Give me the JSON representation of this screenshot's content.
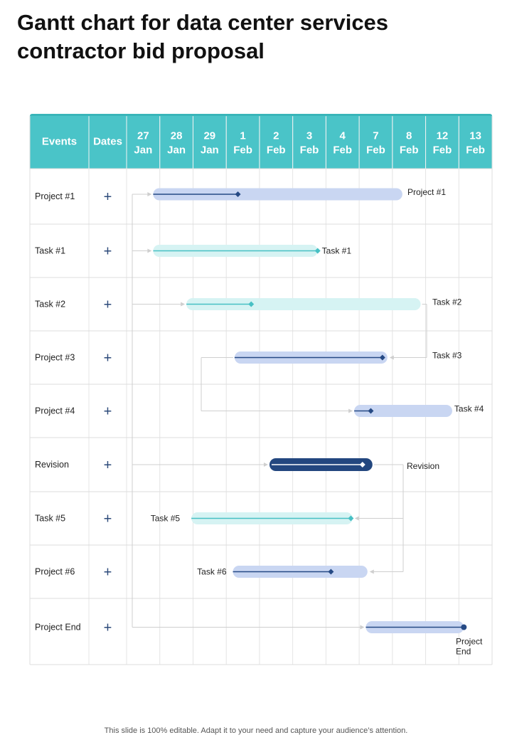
{
  "title_line1": "Gantt chart for data center services",
  "title_line2": "contractor bid proposal",
  "footer_note": "This slide is 100% editable. Adapt it to your need and capture your audience’s attention.",
  "colors": {
    "header_bg": "#4ac4c8",
    "header_top": "#39b5b9",
    "grid": "#dddddd",
    "plus": "#2c4a7a",
    "connector": "#cfcfcf",
    "light_blue": "#c9d6f2",
    "light_teal": "#d6f3f3",
    "dark_navy": "#23477f",
    "teal_line": "#47c0c4",
    "navy_line": "#264a85"
  },
  "chart_data": {
    "type": "gantt",
    "title": "Gantt chart for data center services contractor bid proposal",
    "header_events": "Events",
    "header_dates": "Dates",
    "date_columns": [
      {
        "day": "27",
        "month": "Jan"
      },
      {
        "day": "28",
        "month": "Jan"
      },
      {
        "day": "29",
        "month": "Jan"
      },
      {
        "day": "1",
        "month": "Feb"
      },
      {
        "day": "2",
        "month": "Feb"
      },
      {
        "day": "3",
        "month": "Feb"
      },
      {
        "day": "4",
        "month": "Feb"
      },
      {
        "day": "7",
        "month": "Feb"
      },
      {
        "day": "8",
        "month": "Feb"
      },
      {
        "day": "12",
        "month": "Feb"
      },
      {
        "day": "13",
        "month": "Feb"
      }
    ],
    "plus_symbol": "+",
    "rows": [
      {
        "event": "Project #1",
        "start": 0.8,
        "end": 8.3,
        "progress": 3.35,
        "style": "blue",
        "label": "Project #1",
        "label_side": "right"
      },
      {
        "event": "Task #1",
        "start": 0.8,
        "end": 5.75,
        "progress": 5.75,
        "style": "teal",
        "label": "Task #1",
        "label_side": "right"
      },
      {
        "event": "Task #2",
        "start": 1.8,
        "end": 8.85,
        "progress": 3.75,
        "style": "teal",
        "label": "Task #2",
        "label_side": "right"
      },
      {
        "event": "Project #3",
        "start": 3.25,
        "end": 7.85,
        "progress": 7.7,
        "style": "blue",
        "label": "Task #3",
        "label_side": "right"
      },
      {
        "event": "Project #4",
        "start": 6.85,
        "end": 9.8,
        "progress": 7.35,
        "style": "blue",
        "label": "Task #4",
        "label_side": "right"
      },
      {
        "event": "Revision",
        "start": 4.3,
        "end": 7.4,
        "progress": 7.1,
        "style": "dark",
        "label": "Revision",
        "label_side": "right"
      },
      {
        "event": "Task #5",
        "start": 1.95,
        "end": 6.8,
        "progress": 6.75,
        "style": "teal",
        "label": "Task #5",
        "label_side": "left"
      },
      {
        "event": "Project #6",
        "start": 3.2,
        "end": 7.25,
        "progress": 6.15,
        "style": "blue",
        "label": "Task #6",
        "label_side": "left"
      },
      {
        "event": "Project End",
        "start": 7.2,
        "end": 10.15,
        "progress": 10.15,
        "style": "blue",
        "label": "Project End",
        "label_side": "below"
      }
    ]
  }
}
